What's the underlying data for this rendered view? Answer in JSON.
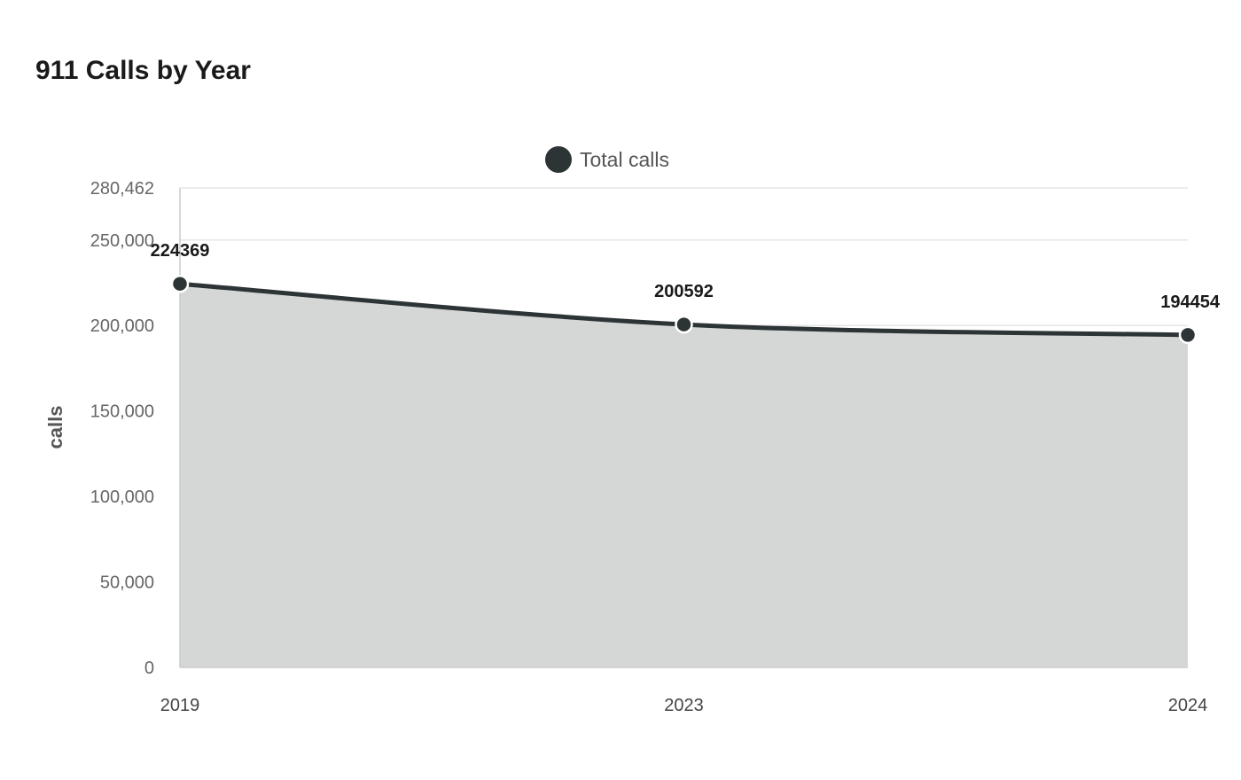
{
  "chart_data": {
    "type": "area",
    "title": "911 Calls by Year",
    "xlabel": "",
    "ylabel": "calls",
    "categories": [
      "2019",
      "2023",
      "2024"
    ],
    "series": [
      {
        "name": "Total calls",
        "values": [
          224369,
          200592,
          194454
        ],
        "color": "#2d3436",
        "fill": "#d5d7d6"
      }
    ],
    "ylim": [
      0,
      280462
    ],
    "yticks": [
      0,
      50000,
      100000,
      150000,
      200000,
      250000,
      280462
    ],
    "ytick_labels": [
      "0",
      "50,000",
      "100,000",
      "150,000",
      "200,000",
      "250,000",
      "280,462"
    ],
    "grid": true,
    "legend": "top-center",
    "data_labels": true
  }
}
